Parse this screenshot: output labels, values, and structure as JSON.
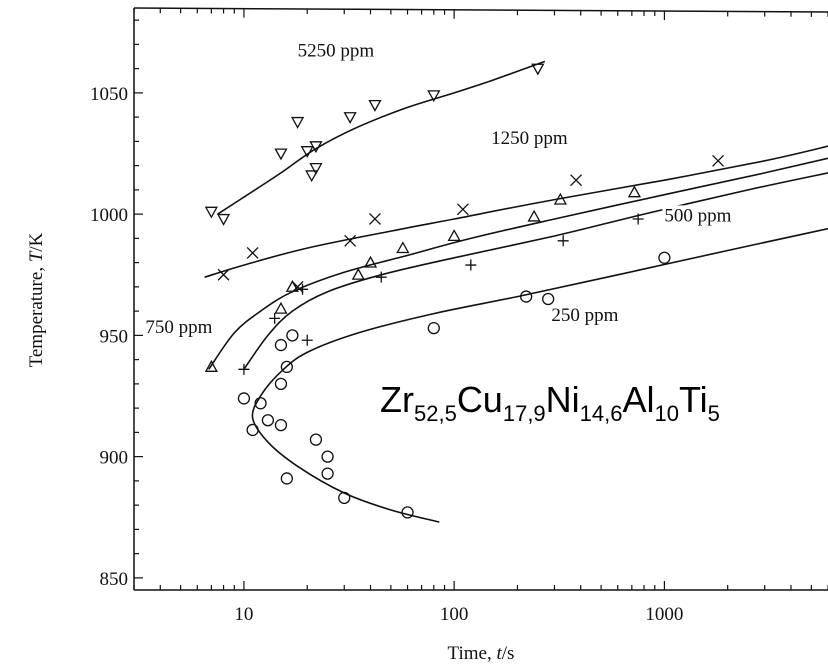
{
  "chart_data": {
    "type": "scatter",
    "x_scale": "log",
    "xlim": [
      3,
      6000
    ],
    "ylim": [
      845,
      1085
    ],
    "xlabel_text": "Time, ",
    "xlabel_var": "t",
    "xlabel_unit": "/s",
    "ylabel_text": "Temperature, ",
    "ylabel_var": "T",
    "ylabel_unit": "/K",
    "x_ticks": [
      {
        "value": 10,
        "label": "10"
      },
      {
        "value": 100,
        "label": "100"
      },
      {
        "value": 1000,
        "label": "1000"
      }
    ],
    "y_ticks": [
      {
        "value": 850,
        "label": "850"
      },
      {
        "value": 900,
        "label": "900"
      },
      {
        "value": 950,
        "label": "950"
      },
      {
        "value": 1000,
        "label": "1000"
      },
      {
        "value": 1050,
        "label": "1050"
      }
    ],
    "annotation": {
      "base": [
        "Zr",
        "Cu",
        "Ni",
        "Al",
        "Ti"
      ],
      "subs": [
        "52,5",
        "17,9",
        "14,6",
        "10",
        "5"
      ]
    },
    "series": [
      {
        "name": "5250 ppm",
        "marker": "triangle-down",
        "label_at": [
          18,
          1065
        ],
        "points": [
          [
            7,
            1001
          ],
          [
            8,
            998
          ],
          [
            15,
            1025
          ],
          [
            18,
            1038
          ],
          [
            20,
            1026
          ],
          [
            21,
            1016
          ],
          [
            22,
            1019
          ],
          [
            22,
            1028
          ],
          [
            32,
            1040
          ],
          [
            42,
            1045
          ],
          [
            80,
            1049
          ],
          [
            250,
            1060
          ]
        ],
        "fit": [
          [
            7.5,
            1000
          ],
          [
            10,
            1007
          ],
          [
            15,
            1017
          ],
          [
            22,
            1027
          ],
          [
            35,
            1036
          ],
          [
            60,
            1044
          ],
          [
            100,
            1050
          ],
          [
            150,
            1055
          ],
          [
            270,
            1063
          ]
        ]
      },
      {
        "name": "1250 ppm",
        "marker": "cross",
        "label_at": [
          150,
          1029
        ],
        "points": [
          [
            8,
            975
          ],
          [
            11,
            984
          ],
          [
            18,
            970
          ],
          [
            32,
            989
          ],
          [
            42,
            998
          ],
          [
            110,
            1002
          ],
          [
            380,
            1014
          ],
          [
            1800,
            1022
          ]
        ],
        "fit": [
          [
            6.5,
            974
          ],
          [
            10,
            979
          ],
          [
            20,
            986
          ],
          [
            50,
            993
          ],
          [
            100,
            998
          ],
          [
            300,
            1006
          ],
          [
            1000,
            1014
          ],
          [
            3000,
            1022
          ],
          [
            6000,
            1028
          ]
        ]
      },
      {
        "name": "750 ppm",
        "marker": "triangle-up",
        "label_at": [
          3.4,
          951
        ],
        "points": [
          [
            7,
            937
          ],
          [
            15,
            961
          ],
          [
            17,
            970
          ],
          [
            35,
            975
          ],
          [
            40,
            980
          ],
          [
            57,
            986
          ],
          [
            100,
            991
          ],
          [
            240,
            999
          ],
          [
            320,
            1006
          ],
          [
            720,
            1009
          ]
        ],
        "fit": [
          [
            6.8,
            936
          ],
          [
            9,
            951
          ],
          [
            12,
            960
          ],
          [
            17,
            968
          ],
          [
            30,
            976
          ],
          [
            60,
            983
          ],
          [
            120,
            990
          ],
          [
            300,
            998
          ],
          [
            1000,
            1008
          ],
          [
            3000,
            1017
          ],
          [
            6000,
            1023
          ]
        ]
      },
      {
        "name": "500 ppm",
        "marker": "plus",
        "label_at": [
          1000,
          997
        ],
        "points": [
          [
            10,
            936
          ],
          [
            14,
            957
          ],
          [
            19,
            969
          ],
          [
            20,
            948
          ],
          [
            45,
            974
          ],
          [
            120,
            979
          ],
          [
            330,
            989
          ],
          [
            750,
            998
          ]
        ],
        "fit": [
          [
            10,
            936
          ],
          [
            13,
            950
          ],
          [
            17,
            960
          ],
          [
            25,
            968
          ],
          [
            45,
            975
          ],
          [
            100,
            982
          ],
          [
            300,
            991
          ],
          [
            800,
            1000
          ],
          [
            2500,
            1010
          ],
          [
            6000,
            1017
          ]
        ]
      },
      {
        "name": "250 ppm",
        "marker": "circle",
        "label_at": [
          290,
          956
        ],
        "points": [
          [
            10,
            924
          ],
          [
            11,
            911
          ],
          [
            12,
            922
          ],
          [
            13,
            915
          ],
          [
            15,
            913
          ],
          [
            15,
            930
          ],
          [
            15,
            946
          ],
          [
            16,
            891
          ],
          [
            17,
            950
          ],
          [
            16,
            937
          ],
          [
            22,
            907
          ],
          [
            25,
            893
          ],
          [
            25,
            900
          ],
          [
            30,
            883
          ],
          [
            60,
            877
          ],
          [
            80,
            953
          ],
          [
            220,
            966
          ],
          [
            280,
            965
          ],
          [
            1000,
            982
          ]
        ],
        "fit": [
          [
            85,
            873
          ],
          [
            50,
            878
          ],
          [
            30,
            885
          ],
          [
            18,
            896
          ],
          [
            13,
            906
          ],
          [
            11,
            916
          ],
          [
            12,
            925
          ],
          [
            15,
            935
          ],
          [
            20,
            943
          ],
          [
            35,
            951
          ],
          [
            80,
            959
          ],
          [
            200,
            966
          ],
          [
            600,
            975
          ],
          [
            2000,
            985
          ],
          [
            6000,
            994
          ]
        ]
      }
    ]
  }
}
